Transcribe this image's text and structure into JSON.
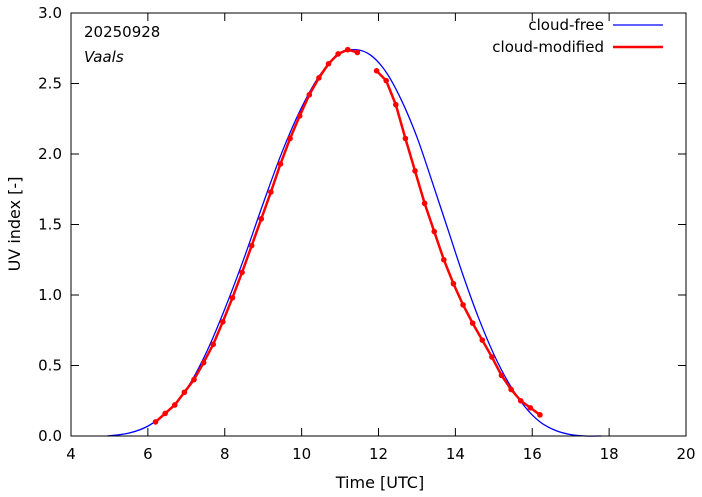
{
  "chart_data": {
    "type": "line",
    "xlabel": "Time  [UTC]",
    "ylabel": "UV index  [-]",
    "xlim": [
      4,
      20
    ],
    "ylim": [
      0,
      3.0
    ],
    "x_ticks": [
      4,
      6,
      8,
      10,
      12,
      14,
      16,
      18,
      20
    ],
    "x_tick_labels": [
      "4",
      "6",
      "8",
      "10",
      "12",
      "14",
      "16",
      "18",
      "20"
    ],
    "y_ticks": [
      0,
      0.5,
      1.0,
      1.5,
      2.0,
      2.5,
      3.0
    ],
    "y_tick_labels": [
      "0.0",
      "0.5",
      "1.0",
      "1.5",
      "2.0",
      "2.5",
      "3.0"
    ],
    "grid": false,
    "legend_position": "top-right",
    "annotations": [
      "20250928",
      "Vaals"
    ],
    "series": [
      {
        "name": "cloud-free",
        "color": "#0000ff",
        "markers": false,
        "x": [
          4.95,
          5.5,
          6.0,
          6.5,
          7.0,
          7.5,
          8.0,
          8.5,
          9.0,
          9.5,
          10.0,
          10.5,
          11.0,
          11.4,
          11.8,
          12.2,
          12.6,
          13.0,
          13.4,
          13.8,
          14.2,
          14.6,
          15.0,
          15.4,
          15.8,
          16.2,
          16.6,
          17.0,
          17.4,
          17.8
        ],
        "y": [
          0.0,
          0.02,
          0.07,
          0.17,
          0.33,
          0.58,
          0.9,
          1.26,
          1.65,
          2.02,
          2.33,
          2.57,
          2.71,
          2.74,
          2.7,
          2.58,
          2.38,
          2.12,
          1.8,
          1.47,
          1.14,
          0.84,
          0.58,
          0.37,
          0.21,
          0.1,
          0.04,
          0.01,
          0.0,
          0.0
        ]
      },
      {
        "name": "cloud-modified",
        "color": "#ff0000",
        "markers": true,
        "segments": [
          {
            "x": [
              6.2,
              6.45,
              6.7,
              6.95,
              7.2,
              7.45,
              7.7,
              7.95,
              8.2,
              8.45,
              8.7,
              8.95,
              9.2,
              9.45,
              9.7,
              9.95,
              10.2,
              10.45,
              10.7,
              10.95,
              11.2,
              11.45
            ],
            "y": [
              0.1,
              0.16,
              0.22,
              0.31,
              0.4,
              0.52,
              0.65,
              0.81,
              0.98,
              1.16,
              1.35,
              1.54,
              1.73,
              1.93,
              2.11,
              2.27,
              2.42,
              2.54,
              2.64,
              2.71,
              2.74,
              2.72
            ]
          },
          {
            "x": [
              11.95,
              12.2,
              12.45,
              12.7,
              12.95,
              13.2,
              13.45,
              13.7,
              13.95,
              14.2,
              14.45,
              14.7,
              14.95,
              15.2,
              15.45,
              15.7,
              15.95,
              16.2
            ],
            "y": [
              2.59,
              2.52,
              2.35,
              2.11,
              1.88,
              1.65,
              1.45,
              1.25,
              1.08,
              0.93,
              0.8,
              0.68,
              0.56,
              0.43,
              0.33,
              0.25,
              0.2,
              0.15
            ]
          }
        ]
      }
    ]
  }
}
